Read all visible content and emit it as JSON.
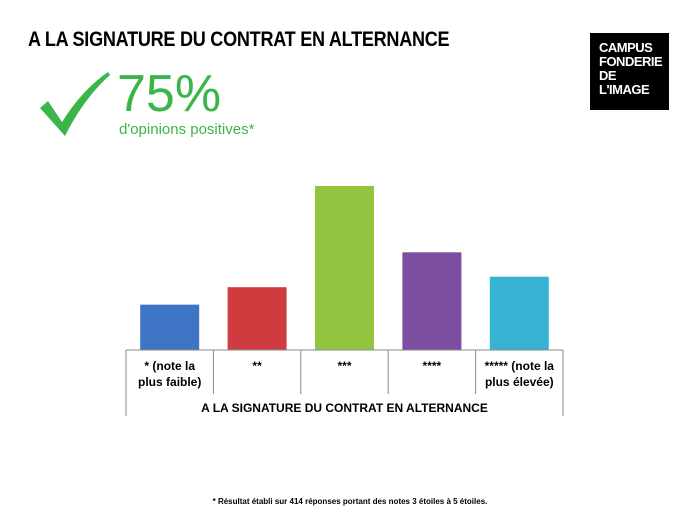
{
  "title": "A LA SIGNATURE DU CONTRAT EN ALTERNANCE",
  "logo": {
    "lines": [
      "CAMPUS",
      "FONDERIE",
      "DE",
      "L'IMAGE"
    ]
  },
  "icon": "checkmark-icon",
  "highlight": {
    "value": "75%",
    "label": "d'opinions positives*"
  },
  "footnote": "* Résultat établi sur 414 réponses portant des notes 3 étoiles à 5 étoiles.",
  "colors": {
    "accent_green": "#3bb54a"
  },
  "chart_data": {
    "type": "bar",
    "categories": [
      "* (note la plus faible)",
      "**",
      "***",
      "****",
      "***** (note la plus élevée)"
    ],
    "category_lines": [
      [
        "* (note la",
        "plus faible)"
      ],
      [
        "**"
      ],
      [
        "***"
      ],
      [
        "****"
      ],
      [
        "***** (note la",
        "plus élevée)"
      ]
    ],
    "values": [
      13,
      18,
      47,
      28,
      21
    ],
    "colors": [
      "#3d74c4",
      "#cf3b3e",
      "#92c43f",
      "#7d4da1",
      "#36b3d3"
    ],
    "xlabel": "A LA SIGNATURE DU CONTRAT EN ALTERNANCE",
    "ylabel": "",
    "ylim": [
      0,
      47
    ],
    "grid": false,
    "legend": "none"
  }
}
